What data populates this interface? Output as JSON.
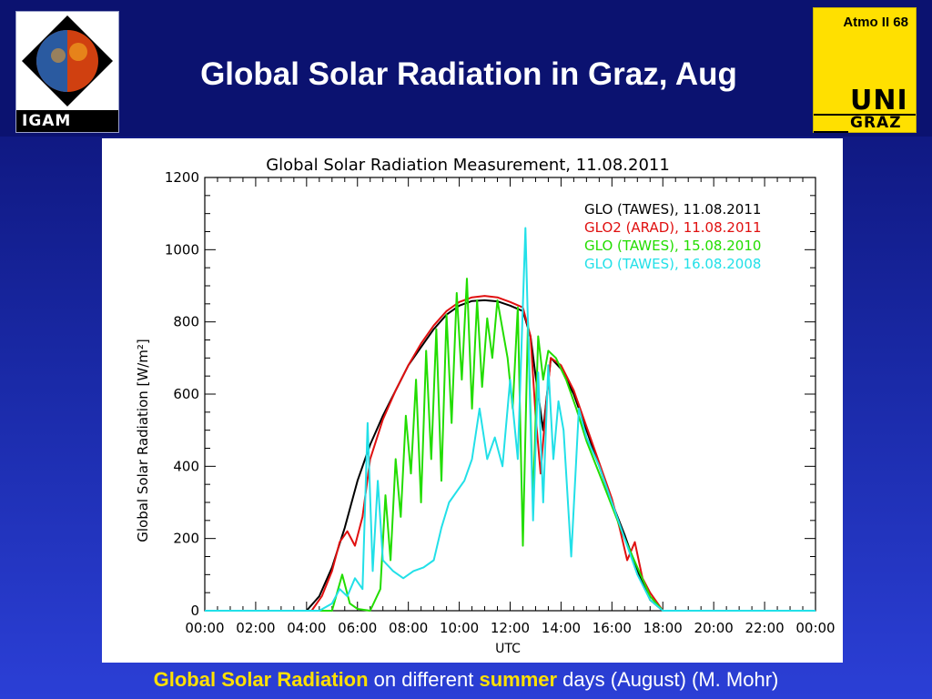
{
  "slide": {
    "title": "Global Solar Radiation in Graz, Aug",
    "slide_number": "Atmo II 68",
    "logo_left_text": "IGAM",
    "logo_right_top": "UNI",
    "logo_right_bottom": "GRAZ",
    "caption": {
      "part1": "Global Solar Radiation",
      "part2": " on different ",
      "part3": "summer",
      "part4": " days (August) (M. Mohr)"
    }
  },
  "chart_data": {
    "type": "line",
    "title": "Global Solar Radiation Measurement, 11.08.2011",
    "xlabel": "UTC",
    "ylabel": "Global Solar Radiation [W/m²]",
    "xlim": [
      0,
      24
    ],
    "ylim": [
      0,
      1200
    ],
    "x_ticks": [
      0,
      2,
      4,
      6,
      8,
      10,
      12,
      14,
      16,
      18,
      20,
      22,
      24
    ],
    "x_tick_labels": [
      "00:00",
      "02:00",
      "04:00",
      "06:00",
      "08:00",
      "10:00",
      "12:00",
      "14:00",
      "16:00",
      "18:00",
      "20:00",
      "22:00",
      "00:00"
    ],
    "y_ticks": [
      0,
      200,
      400,
      600,
      800,
      1000,
      1200
    ],
    "y_tick_labels": [
      "0",
      "200",
      "400",
      "600",
      "800",
      "1000",
      "1200"
    ],
    "legend_position": "top-right",
    "grid": false,
    "series": [
      {
        "name": "GLO (TAWES), 11.08.2011",
        "color": "#000000",
        "x": [
          0,
          4.0,
          4.5,
          5.0,
          5.5,
          6.0,
          6.5,
          7.0,
          7.5,
          8.0,
          8.5,
          9.0,
          9.5,
          10.0,
          10.5,
          11.0,
          11.5,
          12.0,
          12.5,
          12.8,
          13.0,
          13.3,
          13.6,
          14.0,
          14.5,
          15.0,
          15.5,
          16.0,
          16.5,
          17.0,
          17.5,
          18.0,
          24
        ],
        "y": [
          0,
          0,
          40,
          120,
          230,
          360,
          460,
          540,
          610,
          680,
          730,
          780,
          820,
          845,
          858,
          860,
          857,
          845,
          830,
          760,
          650,
          500,
          700,
          670,
          600,
          500,
          400,
          300,
          210,
          110,
          30,
          0,
          0
        ]
      },
      {
        "name": "GLO2 (ARAD), 11.08.2011",
        "color": "#e01010",
        "x": [
          0,
          4.2,
          4.6,
          5.0,
          5.3,
          5.6,
          5.9,
          6.2,
          6.5,
          7.0,
          7.5,
          8.0,
          8.5,
          9.0,
          9.5,
          10.0,
          10.5,
          11.0,
          11.5,
          12.0,
          12.5,
          12.8,
          13.0,
          13.2,
          13.4,
          13.6,
          14.0,
          14.5,
          15.0,
          15.5,
          16.0,
          16.3,
          16.6,
          16.9,
          17.2,
          17.5,
          18.0,
          24
        ],
        "y": [
          0,
          0,
          40,
          110,
          190,
          220,
          180,
          260,
          420,
          530,
          610,
          680,
          740,
          790,
          830,
          855,
          868,
          872,
          868,
          855,
          840,
          760,
          540,
          380,
          560,
          700,
          680,
          610,
          510,
          410,
          310,
          230,
          140,
          190,
          90,
          50,
          0,
          0
        ]
      },
      {
        "name": "GLO (TAWES), 15.08.2010",
        "color": "#22dd00",
        "x": [
          0,
          5.0,
          5.4,
          5.7,
          6.0,
          6.5,
          6.9,
          7.1,
          7.3,
          7.5,
          7.7,
          7.9,
          8.1,
          8.3,
          8.5,
          8.7,
          8.9,
          9.1,
          9.3,
          9.5,
          9.7,
          9.9,
          10.1,
          10.3,
          10.5,
          10.7,
          10.9,
          11.1,
          11.3,
          11.5,
          11.7,
          11.9,
          12.1,
          12.3,
          12.5,
          12.7,
          12.9,
          13.1,
          13.3,
          13.5,
          13.8,
          14.2,
          14.6,
          15.0,
          15.5,
          16.0,
          16.5,
          17.0,
          17.5,
          18.0,
          24
        ],
        "y": [
          0,
          0,
          100,
          20,
          5,
          0,
          60,
          320,
          140,
          420,
          260,
          540,
          380,
          640,
          300,
          720,
          420,
          780,
          360,
          820,
          520,
          880,
          640,
          920,
          560,
          860,
          620,
          810,
          700,
          860,
          780,
          700,
          560,
          840,
          180,
          800,
          300,
          760,
          640,
          720,
          700,
          640,
          560,
          470,
          380,
          290,
          200,
          120,
          40,
          0,
          0
        ]
      },
      {
        "name": "GLO (TAWES), 16.08.2008",
        "color": "#22e0e8",
        "x": [
          0,
          4.5,
          5.0,
          5.3,
          5.6,
          5.9,
          6.2,
          6.4,
          6.6,
          6.8,
          7.0,
          7.4,
          7.8,
          8.2,
          8.6,
          9.0,
          9.3,
          9.6,
          9.9,
          10.2,
          10.5,
          10.8,
          11.1,
          11.4,
          11.7,
          12.0,
          12.3,
          12.6,
          12.9,
          13.1,
          13.3,
          13.5,
          13.7,
          13.9,
          14.1,
          14.4,
          14.7,
          15.0,
          15.5,
          16.0,
          16.5,
          17.0,
          17.5,
          18.0,
          24
        ],
        "y": [
          0,
          0,
          20,
          60,
          40,
          90,
          60,
          520,
          110,
          360,
          140,
          110,
          90,
          110,
          120,
          140,
          230,
          300,
          330,
          360,
          420,
          560,
          420,
          480,
          400,
          640,
          420,
          1060,
          250,
          660,
          300,
          680,
          420,
          580,
          500,
          150,
          560,
          480,
          400,
          300,
          200,
          100,
          30,
          0,
          0
        ]
      }
    ]
  }
}
